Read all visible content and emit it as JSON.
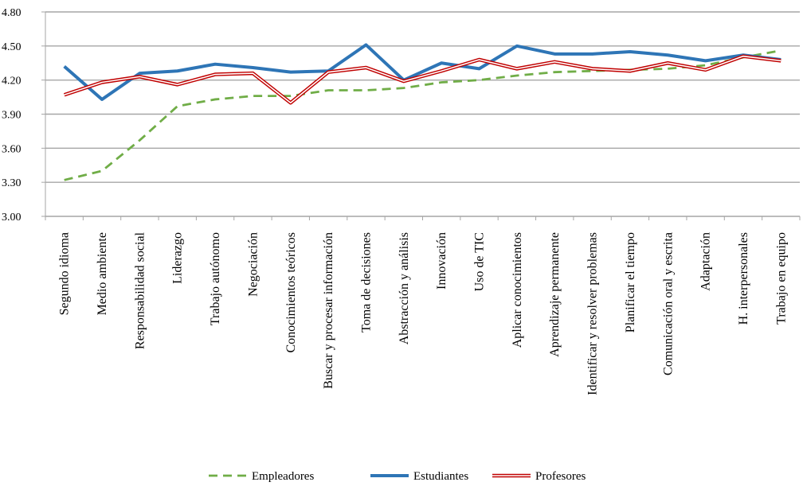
{
  "chart_data": {
    "type": "line",
    "title": "",
    "xlabel": "",
    "ylabel": "",
    "ylim": [
      3.0,
      4.8
    ],
    "yticks": [
      "3.00",
      "3.30",
      "3.60",
      "3.90",
      "4.20",
      "4.50",
      "4.80"
    ],
    "grid": "horizontal",
    "legend": "bottom-center",
    "categories": [
      "Segundo idioma",
      "Medio ambiente",
      "Responsabilidad social",
      "Liderazgo",
      "Trabajo autónomo",
      "Negociación",
      "Conocimientos teóricos",
      "Buscar y procesar información",
      "Toma de decisiones",
      "Abstracción y análisis",
      "Innovación",
      "Uso de TIC",
      "Aplicar conocimientos",
      "Aprendizaje permanente",
      "Identificar y resolver problemas",
      "Planificar el tiempo",
      "Comunicación oral y escrita",
      "Adaptación",
      "H. interpersonales",
      "Trabajo en equipo"
    ],
    "series": [
      {
        "name": "Empleadores",
        "color": "#70ad47",
        "style": "dashed",
        "values": [
          3.32,
          3.4,
          3.67,
          3.97,
          4.03,
          4.06,
          4.06,
          4.11,
          4.11,
          4.13,
          4.18,
          4.2,
          4.24,
          4.27,
          4.28,
          4.29,
          4.3,
          4.33,
          4.4,
          4.46
        ]
      },
      {
        "name": "Estudiantes",
        "color": "#2e75b6",
        "style": "solid-thick",
        "values": [
          4.32,
          4.03,
          4.26,
          4.28,
          4.34,
          4.31,
          4.27,
          4.28,
          4.51,
          4.2,
          4.35,
          4.3,
          4.5,
          4.43,
          4.43,
          4.45,
          4.42,
          4.37,
          4.42,
          4.38
        ]
      },
      {
        "name": "Profesores",
        "color": "#c00000",
        "style": "double",
        "values": [
          4.07,
          4.18,
          4.23,
          4.16,
          4.25,
          4.26,
          4.0,
          4.27,
          4.31,
          4.19,
          4.28,
          4.38,
          4.3,
          4.36,
          4.3,
          4.28,
          4.35,
          4.29,
          4.41,
          4.37
        ]
      }
    ]
  }
}
